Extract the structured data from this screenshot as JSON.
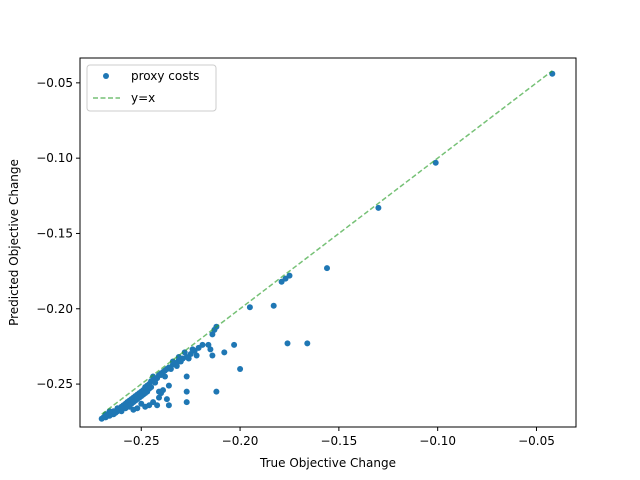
{
  "chart_data": {
    "type": "scatter",
    "title": "",
    "xlabel": "True Objective Change",
    "ylabel": "Predicted Objective Change",
    "xlim": [
      -0.281,
      -0.03
    ],
    "ylim": [
      -0.2785,
      -0.0335
    ],
    "xticks": [
      -0.25,
      -0.2,
      -0.15,
      -0.1,
      -0.05
    ],
    "xtick_labels": [
      "−0.25",
      "−0.20",
      "−0.15",
      "−0.10",
      "−0.05"
    ],
    "yticks": [
      -0.25,
      -0.2,
      -0.15,
      -0.1,
      -0.05
    ],
    "ytick_labels": [
      "−0.25",
      "−0.20",
      "−0.15",
      "−0.10",
      "−0.05"
    ],
    "grid": false,
    "legend_position": "top-left",
    "series": [
      {
        "name": "proxy costs",
        "kind": "scatter",
        "color": "#1f77b4",
        "points": [
          [
            -0.042,
            -0.044
          ],
          [
            -0.101,
            -0.103
          ],
          [
            -0.13,
            -0.133
          ],
          [
            -0.156,
            -0.173
          ],
          [
            -0.175,
            -0.178
          ],
          [
            -0.177,
            -0.18
          ],
          [
            -0.179,
            -0.182
          ],
          [
            -0.183,
            -0.198
          ],
          [
            -0.195,
            -0.199
          ],
          [
            -0.166,
            -0.223
          ],
          [
            -0.176,
            -0.223
          ],
          [
            -0.212,
            -0.212
          ],
          [
            -0.213,
            -0.214
          ],
          [
            -0.214,
            -0.217
          ],
          [
            -0.216,
            -0.224
          ],
          [
            -0.215,
            -0.227
          ],
          [
            -0.203,
            -0.224
          ],
          [
            -0.208,
            -0.229
          ],
          [
            -0.214,
            -0.231
          ],
          [
            -0.2,
            -0.24
          ],
          [
            -0.212,
            -0.255
          ],
          [
            -0.219,
            -0.224
          ],
          [
            -0.221,
            -0.226
          ],
          [
            -0.223,
            -0.228
          ],
          [
            -0.225,
            -0.23
          ],
          [
            -0.227,
            -0.232
          ],
          [
            -0.229,
            -0.233
          ],
          [
            -0.231,
            -0.234
          ],
          [
            -0.232,
            -0.236
          ],
          [
            -0.234,
            -0.237
          ],
          [
            -0.236,
            -0.239
          ],
          [
            -0.237,
            -0.24
          ],
          [
            -0.239,
            -0.242
          ],
          [
            -0.24,
            -0.243
          ],
          [
            -0.241,
            -0.244
          ],
          [
            -0.242,
            -0.246
          ],
          [
            -0.243,
            -0.247
          ],
          [
            -0.245,
            -0.248
          ],
          [
            -0.246,
            -0.25
          ],
          [
            -0.247,
            -0.251
          ],
          [
            -0.248,
            -0.252
          ],
          [
            -0.249,
            -0.254
          ],
          [
            -0.25,
            -0.255
          ],
          [
            -0.251,
            -0.256
          ],
          [
            -0.252,
            -0.257
          ],
          [
            -0.253,
            -0.258
          ],
          [
            -0.254,
            -0.259
          ],
          [
            -0.255,
            -0.26
          ],
          [
            -0.256,
            -0.261
          ],
          [
            -0.257,
            -0.262
          ],
          [
            -0.258,
            -0.263
          ],
          [
            -0.259,
            -0.264
          ],
          [
            -0.26,
            -0.265
          ],
          [
            -0.261,
            -0.266
          ],
          [
            -0.262,
            -0.267
          ],
          [
            -0.263,
            -0.268
          ],
          [
            -0.264,
            -0.269
          ],
          [
            -0.265,
            -0.27
          ],
          [
            -0.266,
            -0.27
          ],
          [
            -0.267,
            -0.271
          ],
          [
            -0.268,
            -0.272
          ],
          [
            -0.269,
            -0.272
          ],
          [
            -0.27,
            -0.273
          ],
          [
            -0.231,
            -0.232
          ],
          [
            -0.233,
            -0.236
          ],
          [
            -0.235,
            -0.24
          ],
          [
            -0.238,
            -0.245
          ],
          [
            -0.236,
            -0.251
          ],
          [
            -0.239,
            -0.254
          ],
          [
            -0.241,
            -0.255
          ],
          [
            -0.24,
            -0.256
          ],
          [
            -0.237,
            -0.26
          ],
          [
            -0.241,
            -0.259
          ],
          [
            -0.236,
            -0.264
          ],
          [
            -0.242,
            -0.264
          ],
          [
            -0.227,
            -0.245
          ],
          [
            -0.227,
            -0.255
          ],
          [
            -0.227,
            -0.262
          ],
          [
            -0.244,
            -0.262
          ],
          [
            -0.246,
            -0.264
          ],
          [
            -0.248,
            -0.265
          ],
          [
            -0.25,
            -0.263
          ],
          [
            -0.252,
            -0.266
          ],
          [
            -0.254,
            -0.267
          ],
          [
            -0.256,
            -0.265
          ],
          [
            -0.258,
            -0.266
          ],
          [
            -0.26,
            -0.268
          ],
          [
            -0.262,
            -0.268
          ],
          [
            -0.264,
            -0.27
          ],
          [
            -0.266,
            -0.271
          ],
          [
            -0.268,
            -0.272
          ],
          [
            -0.243,
            -0.249
          ],
          [
            -0.245,
            -0.252
          ],
          [
            -0.247,
            -0.255
          ],
          [
            -0.249,
            -0.257
          ],
          [
            -0.251,
            -0.259
          ],
          [
            -0.253,
            -0.261
          ],
          [
            -0.255,
            -0.263
          ],
          [
            -0.257,
            -0.262
          ],
          [
            -0.259,
            -0.266
          ],
          [
            -0.261,
            -0.267
          ],
          [
            -0.263,
            -0.269
          ],
          [
            -0.246,
            -0.253
          ],
          [
            -0.248,
            -0.256
          ],
          [
            -0.25,
            -0.258
          ],
          [
            -0.252,
            -0.26
          ],
          [
            -0.254,
            -0.262
          ],
          [
            -0.256,
            -0.264
          ],
          [
            -0.258,
            -0.265
          ],
          [
            -0.26,
            -0.266
          ],
          [
            -0.262,
            -0.266
          ],
          [
            -0.264,
            -0.268
          ],
          [
            -0.232,
            -0.238
          ],
          [
            -0.234,
            -0.235
          ],
          [
            -0.238,
            -0.241
          ],
          [
            -0.24,
            -0.244
          ],
          [
            -0.244,
            -0.245
          ],
          [
            -0.228,
            -0.229
          ],
          [
            -0.226,
            -0.233
          ],
          [
            -0.224,
            -0.227
          ],
          [
            -0.222,
            -0.231
          ],
          [
            -0.23,
            -0.235
          ],
          [
            -0.266,
            -0.268
          ],
          [
            -0.268,
            -0.27
          ]
        ]
      },
      {
        "name": "y=x",
        "kind": "line",
        "color": "#2ca02c",
        "dashed": true,
        "x": [
          -0.27,
          -0.042
        ],
        "y": [
          -0.27,
          -0.042
        ]
      }
    ]
  }
}
